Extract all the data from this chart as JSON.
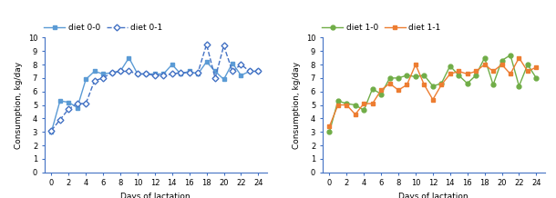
{
  "x": [
    0,
    1,
    2,
    3,
    4,
    5,
    6,
    7,
    8,
    9,
    10,
    11,
    12,
    13,
    14,
    15,
    16,
    17,
    18,
    19,
    20,
    21,
    22,
    23,
    24
  ],
  "diet00": [
    3.0,
    5.3,
    5.2,
    4.8,
    6.9,
    7.5,
    7.3,
    7.4,
    7.5,
    8.5,
    7.3,
    7.3,
    7.3,
    7.3,
    8.0,
    7.3,
    7.5,
    7.3,
    8.2,
    7.5,
    6.9,
    8.1,
    7.2,
    7.5,
    7.5
  ],
  "diet01": [
    3.1,
    3.9,
    4.7,
    5.1,
    5.1,
    6.8,
    7.0,
    7.4,
    7.5,
    7.5,
    7.3,
    7.3,
    7.2,
    7.2,
    7.3,
    7.4,
    7.4,
    7.4,
    9.5,
    7.0,
    9.4,
    7.5,
    8.0,
    7.5,
    7.5
  ],
  "diet10": [
    3.0,
    5.3,
    5.1,
    5.0,
    4.6,
    6.2,
    5.8,
    7.0,
    7.0,
    7.2,
    7.1,
    7.2,
    6.4,
    6.6,
    7.9,
    7.2,
    6.6,
    7.2,
    8.5,
    6.5,
    8.3,
    8.7,
    6.4,
    8.0,
    7.0
  ],
  "diet11": [
    3.4,
    5.0,
    5.0,
    4.3,
    5.1,
    5.1,
    6.1,
    6.6,
    6.1,
    6.5,
    8.0,
    6.5,
    5.4,
    6.5,
    7.3,
    7.5,
    7.3,
    7.5,
    8.0,
    7.5,
    8.0,
    7.3,
    8.5,
    7.5,
    7.8
  ],
  "color00": "#5b9bd5",
  "color01": "#4472c4",
  "color10": "#70ad47",
  "color11": "#ed7d31",
  "ylabel": "Consumption, kg/day",
  "xlabel": "Days of lactation",
  "ylim": [
    0,
    10
  ],
  "yticks": [
    0,
    1,
    2,
    3,
    4,
    5,
    6,
    7,
    8,
    9,
    10
  ],
  "xticks": [
    0,
    2,
    4,
    6,
    8,
    10,
    12,
    14,
    16,
    18,
    20,
    22,
    24
  ],
  "label00": "diet 0-0",
  "label01": "diet 0-1",
  "label10": "diet 1-0",
  "label11": "diet 1-1",
  "spine_color": "#4472c4",
  "figsize": [
    6.1,
    2.18
  ],
  "dpi": 100
}
